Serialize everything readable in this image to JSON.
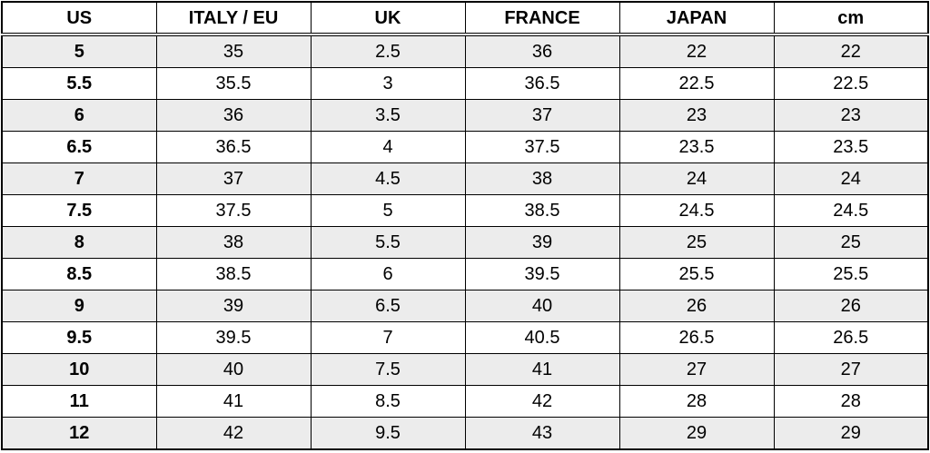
{
  "size_chart": {
    "headers": [
      "US",
      "ITALY / EU",
      "UK",
      "FRANCE",
      "JAPAN",
      "cm"
    ],
    "rows": [
      [
        "5",
        "35",
        "2.5",
        "36",
        "22",
        "22"
      ],
      [
        "5.5",
        "35.5",
        "3",
        "36.5",
        "22.5",
        "22.5"
      ],
      [
        "6",
        "36",
        "3.5",
        "37",
        "23",
        "23"
      ],
      [
        "6.5",
        "36.5",
        "4",
        "37.5",
        "23.5",
        "23.5"
      ],
      [
        "7",
        "37",
        "4.5",
        "38",
        "24",
        "24"
      ],
      [
        "7.5",
        "37.5",
        "5",
        "38.5",
        "24.5",
        "24.5"
      ],
      [
        "8",
        "38",
        "5.5",
        "39",
        "25",
        "25"
      ],
      [
        "8.5",
        "38.5",
        "6",
        "39.5",
        "25.5",
        "25.5"
      ],
      [
        "9",
        "39",
        "6.5",
        "40",
        "26",
        "26"
      ],
      [
        "9.5",
        "39.5",
        "7",
        "40.5",
        "26.5",
        "26.5"
      ],
      [
        "10",
        "40",
        "7.5",
        "41",
        "27",
        "27"
      ],
      [
        "11",
        "41",
        "8.5",
        "42",
        "28",
        "28"
      ],
      [
        "12",
        "42",
        "9.5",
        "43",
        "29",
        "29"
      ]
    ]
  },
  "colors": {
    "row_shade": "#ececec",
    "row_plain": "#ffffff",
    "border": "#000000"
  }
}
